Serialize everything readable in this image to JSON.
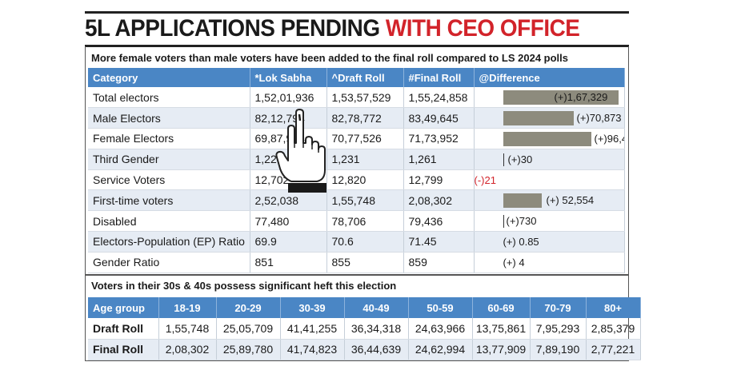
{
  "headline": {
    "part1": "5L APPLICATIONS PENDING ",
    "part2": "WITH CEO OFFICE"
  },
  "subtitle": "More female voters than male voters have been added to the final roll compared to LS 2024 polls",
  "main_table": {
    "headers": [
      "Category",
      "*Lok Sabha",
      "^Draft Roll",
      "#Final Roll",
      "@Difference"
    ],
    "rows": [
      {
        "category": "Total electors",
        "lok_sabha": "1,52,01,936",
        "draft_roll": "1,53,57,529",
        "final_roll": "1,55,24,858",
        "difference": "(+)1,67,329",
        "diff_value": 167329
      },
      {
        "category": "Male Electors",
        "lok_sabha": "82,12,794",
        "draft_roll": "82,78,772",
        "final_roll": "83,49,645",
        "difference": "(+)70,873",
        "diff_value": 70873
      },
      {
        "category": "Female Electors",
        "lok_sabha": "69,87,914",
        "draft_roll": "70,77,526",
        "final_roll": "71,73,952",
        "difference": "(+)96,426",
        "diff_value": 96426
      },
      {
        "category": "Third Gender",
        "lok_sabha": "1,228",
        "draft_roll": "1,231",
        "final_roll": "1,261",
        "difference": "(+)30",
        "diff_value": 30
      },
      {
        "category": "Service Voters",
        "lok_sabha": "12,702",
        "draft_roll": "12,820",
        "final_roll": "12,799",
        "difference": "(-)21",
        "diff_value": -21
      },
      {
        "category": "First-time voters",
        "lok_sabha": "2,52,038",
        "draft_roll": "1,55,748",
        "final_roll": "2,08,302",
        "difference": "(+) 52,554",
        "diff_value": 52554
      },
      {
        "category": "Disabled",
        "lok_sabha": "77,480",
        "draft_roll": "78,706",
        "final_roll": "79,436",
        "difference": "(+)730",
        "diff_value": 730
      },
      {
        "category": "Electors-Population (EP) Ratio",
        "lok_sabha": "69.9",
        "draft_roll": "70.6",
        "final_roll": "71.45",
        "difference": "(+) 0.85",
        "diff_value": 0.85
      },
      {
        "category": "Gender Ratio",
        "lok_sabha": "851",
        "draft_roll": "855",
        "final_roll": "859",
        "difference": "(+) 4",
        "diff_value": 4
      }
    ]
  },
  "age_subtitle": "Voters in their 30s & 40s possess significant heft this election",
  "age_table": {
    "headers": [
      "Age group",
      "18-19",
      "20-29",
      "30-39",
      "40-49",
      "50-59",
      "60-69",
      "70-79",
      "80+"
    ],
    "rows": [
      {
        "label": "Draft Roll",
        "values": [
          "1,55,748",
          "25,05,709",
          "41,41,255",
          "36,34,318",
          "24,63,966",
          "13,75,861",
          "7,95,293",
          "2,85,379"
        ]
      },
      {
        "label": "Final Roll",
        "values": [
          "2,08,302",
          "25,89,780",
          "41,74,823",
          "36,44,639",
          "24,62,994",
          "13,77,909",
          "7,89,190",
          "2,77,221"
        ]
      }
    ]
  },
  "colors": {
    "header_blue": "#4a86c5",
    "headline_red": "#d2232a",
    "bar_gray": "#8d8b7d",
    "row_alt": "#e6ecf4"
  },
  "icons": [
    "voting-finger-hand-icon"
  ]
}
